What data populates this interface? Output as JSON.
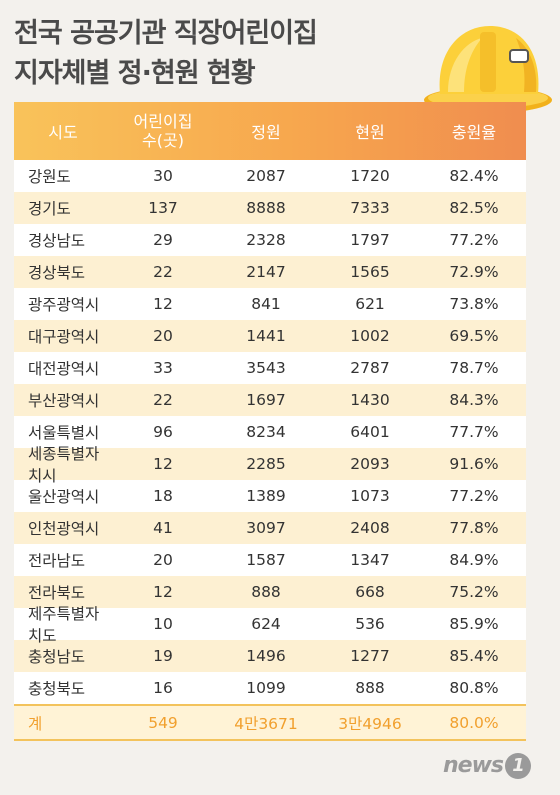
{
  "title_lines": [
    "전국 공공기관 직장어린이집",
    "지자체별 정·현원 현황"
  ],
  "columns": [
    "시도",
    "어린이집",
    "수(곳)",
    "정원",
    "현원",
    "충원율"
  ],
  "rows": [
    [
      "강원도",
      "30",
      "2087",
      "1720",
      "82.4%"
    ],
    [
      "경기도",
      "137",
      "8888",
      "7333",
      "82.5%"
    ],
    [
      "경상남도",
      "29",
      "2328",
      "1797",
      "77.2%"
    ],
    [
      "경상북도",
      "22",
      "2147",
      "1565",
      "72.9%"
    ],
    [
      "광주광역시",
      "12",
      "841",
      "621",
      "73.8%"
    ],
    [
      "대구광역시",
      "20",
      "1441",
      "1002",
      "69.5%"
    ],
    [
      "대전광역시",
      "33",
      "3543",
      "2787",
      "78.7%"
    ],
    [
      "부산광역시",
      "22",
      "1697",
      "1430",
      "84.3%"
    ],
    [
      "서울특별시",
      "96",
      "8234",
      "6401",
      "77.7%"
    ],
    [
      "세종특별자치시",
      "12",
      "2285",
      "2093",
      "91.6%"
    ],
    [
      "울산광역시",
      "18",
      "1389",
      "1073",
      "77.2%"
    ],
    [
      "인천광역시",
      "41",
      "3097",
      "2408",
      "77.8%"
    ],
    [
      "전라남도",
      "20",
      "1587",
      "1347",
      "84.9%"
    ],
    [
      "전라북도",
      "12",
      "888",
      "668",
      "75.2%"
    ],
    [
      "제주특별자치도",
      "10",
      "624",
      "536",
      "85.9%"
    ],
    [
      "충청남도",
      "19",
      "1496",
      "1277",
      "85.4%"
    ],
    [
      "충청북도",
      "16",
      "1099",
      "888",
      "80.8%"
    ]
  ],
  "total": [
    "계",
    "549",
    "4만3671",
    "3만4946",
    "80.0%"
  ],
  "logo": {
    "text": "news",
    "mark": "1"
  },
  "colors": {
    "header_start": "#f9c35a",
    "header_end": "#f08d4f",
    "stripe": "#fdf0d2",
    "total_text": "#f1a02e"
  },
  "chart_data": {
    "type": "table",
    "columns": [
      "시도",
      "어린이집 수(곳)",
      "정원",
      "현원",
      "충원율"
    ],
    "categories": [
      "강원도",
      "경기도",
      "경상남도",
      "경상북도",
      "광주광역시",
      "대구광역시",
      "대전광역시",
      "부산광역시",
      "서울특별시",
      "세종특별자치시",
      "울산광역시",
      "인천광역시",
      "전라남도",
      "전라북도",
      "제주특별자치도",
      "충청남도",
      "충청북도"
    ],
    "series": [
      {
        "name": "어린이집 수(곳)",
        "values": [
          30,
          137,
          29,
          22,
          12,
          20,
          33,
          22,
          96,
          12,
          18,
          41,
          20,
          12,
          10,
          19,
          16
        ]
      },
      {
        "name": "정원",
        "values": [
          2087,
          8888,
          2328,
          2147,
          841,
          1441,
          3543,
          1697,
          8234,
          2285,
          1389,
          3097,
          1587,
          888,
          624,
          1496,
          1099
        ]
      },
      {
        "name": "현원",
        "values": [
          1720,
          7333,
          1797,
          1565,
          621,
          1002,
          2787,
          1430,
          6401,
          2093,
          1073,
          2408,
          1347,
          668,
          536,
          1277,
          888
        ]
      },
      {
        "name": "충원율",
        "values": [
          82.4,
          82.5,
          77.2,
          72.9,
          73.8,
          69.5,
          78.7,
          84.3,
          77.7,
          91.6,
          77.2,
          77.8,
          84.9,
          75.2,
          85.9,
          85.4,
          80.8
        ]
      }
    ],
    "total": {
      "어린이집 수(곳)": 549,
      "정원": 43671,
      "현원": 34946,
      "충원율": 80.0
    }
  }
}
